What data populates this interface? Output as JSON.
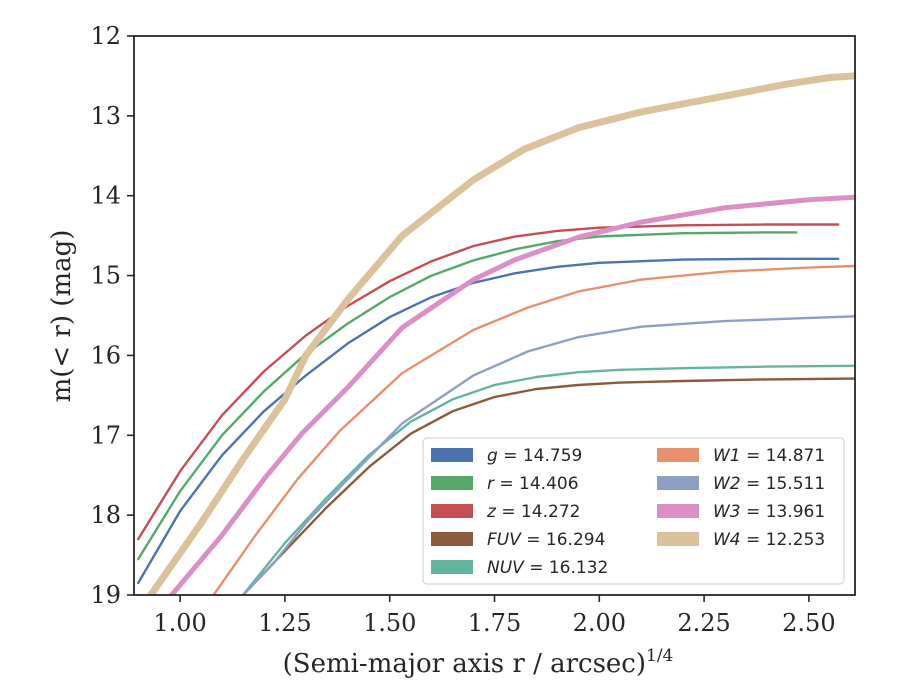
{
  "chart_data": {
    "type": "line",
    "xlabel": "(Semi-major axis r / arcsec)",
    "xlabel_sup": "1/4",
    "ylabel": "m(< r) (mag)",
    "xlim": [
      0.89,
      2.61
    ],
    "ylim": [
      19,
      12
    ],
    "y_inverted": true,
    "x_ticks": [
      "1.00",
      "1.25",
      "1.50",
      "1.75",
      "2.00",
      "2.25",
      "2.50"
    ],
    "y_ticks": [
      "12",
      "13",
      "14",
      "15",
      "16",
      "17",
      "18",
      "19"
    ],
    "grid": false,
    "legend_placement": "lower-right",
    "series": [
      {
        "name": "g = 14.759",
        "label_var": "g",
        "label_val": "= 14.759",
        "color": "#4c72b0",
        "x": [
          0.9,
          1.0,
          1.1,
          1.2,
          1.3,
          1.4,
          1.5,
          1.6,
          1.7,
          1.8,
          1.9,
          2.0,
          2.2,
          2.4,
          2.57
        ],
        "y": [
          18.85,
          17.95,
          17.25,
          16.7,
          16.25,
          15.85,
          15.52,
          15.27,
          15.09,
          14.97,
          14.89,
          14.84,
          14.8,
          14.79,
          14.79
        ]
      },
      {
        "name": "r = 14.406",
        "label_var": "r",
        "label_val": "= 14.406",
        "color": "#55a868",
        "x": [
          0.9,
          1.0,
          1.1,
          1.2,
          1.3,
          1.4,
          1.5,
          1.6,
          1.7,
          1.8,
          1.9,
          2.0,
          2.2,
          2.4,
          2.47
        ],
        "y": [
          18.55,
          17.7,
          17.0,
          16.45,
          15.98,
          15.6,
          15.27,
          15.0,
          14.81,
          14.67,
          14.57,
          14.51,
          14.47,
          14.46,
          14.46
        ]
      },
      {
        "name": "z = 14.272",
        "label_var": "z",
        "label_val": "= 14.272",
        "color": "#c44e52",
        "x": [
          0.9,
          1.0,
          1.1,
          1.2,
          1.3,
          1.4,
          1.5,
          1.6,
          1.7,
          1.8,
          1.9,
          2.0,
          2.2,
          2.4,
          2.57
        ],
        "y": [
          18.3,
          17.45,
          16.75,
          16.2,
          15.75,
          15.38,
          15.07,
          14.82,
          14.63,
          14.51,
          14.44,
          14.4,
          14.37,
          14.36,
          14.36
        ]
      },
      {
        "name": "FUV = 16.294",
        "label_var": "FUV",
        "label_val": "= 16.294",
        "color": "#8c5a3c",
        "x": [
          1.15,
          1.25,
          1.35,
          1.45,
          1.55,
          1.65,
          1.75,
          1.85,
          1.95,
          2.05,
          2.2,
          2.4,
          2.61
        ],
        "y": [
          19.0,
          18.45,
          17.9,
          17.4,
          16.98,
          16.7,
          16.52,
          16.42,
          16.37,
          16.34,
          16.32,
          16.3,
          16.29
        ]
      },
      {
        "name": "NUV = 16.132",
        "label_var": "NUV",
        "label_val": "= 16.132",
        "color": "#64b5a0",
        "x": [
          1.15,
          1.25,
          1.35,
          1.45,
          1.55,
          1.65,
          1.75,
          1.85,
          1.95,
          2.05,
          2.2,
          2.4,
          2.61
        ],
        "y": [
          19.0,
          18.35,
          17.78,
          17.25,
          16.83,
          16.55,
          16.37,
          16.27,
          16.21,
          16.18,
          16.16,
          16.14,
          16.13
        ]
      },
      {
        "name": "W1 = 14.871",
        "label_var": "W1",
        "label_val": "= 14.871",
        "color": "#e8906e",
        "x": [
          1.08,
          1.18,
          1.28,
          1.38,
          1.53,
          1.7,
          1.83,
          1.95,
          2.1,
          2.3,
          2.5,
          2.61
        ],
        "y": [
          19.0,
          18.25,
          17.55,
          16.95,
          16.22,
          15.68,
          15.4,
          15.2,
          15.05,
          14.95,
          14.9,
          14.88
        ]
      },
      {
        "name": "W2 = 15.511",
        "label_var": "W2",
        "label_val": "= 15.511",
        "color": "#8d9fc4",
        "x": [
          1.15,
          1.22,
          1.3,
          1.4,
          1.53,
          1.7,
          1.83,
          1.95,
          2.1,
          2.3,
          2.5,
          2.61
        ],
        "y": [
          19.0,
          18.62,
          18.1,
          17.55,
          16.85,
          16.25,
          15.95,
          15.77,
          15.64,
          15.57,
          15.53,
          15.51
        ]
      },
      {
        "name": "W3 = 13.961",
        "label_var": "W3",
        "label_val": "= 13.961",
        "color": "#dc8fc7",
        "x": [
          0.98,
          1.1,
          1.2,
          1.29,
          1.4,
          1.53,
          1.7,
          1.8,
          1.95,
          2.1,
          2.3,
          2.5,
          2.61
        ],
        "y": [
          19.0,
          18.25,
          17.55,
          16.98,
          16.4,
          15.65,
          15.05,
          14.8,
          14.52,
          14.33,
          14.15,
          14.05,
          14.02
        ]
      },
      {
        "name": "W4 = 12.253",
        "label_var": "W4",
        "label_val": "= 12.253",
        "color": "#dbc29c",
        "x": [
          0.93,
          1.05,
          1.15,
          1.25,
          1.3,
          1.4,
          1.53,
          1.7,
          1.82,
          1.95,
          2.1,
          2.3,
          2.45,
          2.55,
          2.61
        ],
        "y": [
          19.0,
          18.1,
          17.3,
          16.55,
          16.0,
          15.3,
          14.5,
          13.8,
          13.42,
          13.15,
          12.95,
          12.75,
          12.6,
          12.52,
          12.5
        ]
      }
    ]
  }
}
